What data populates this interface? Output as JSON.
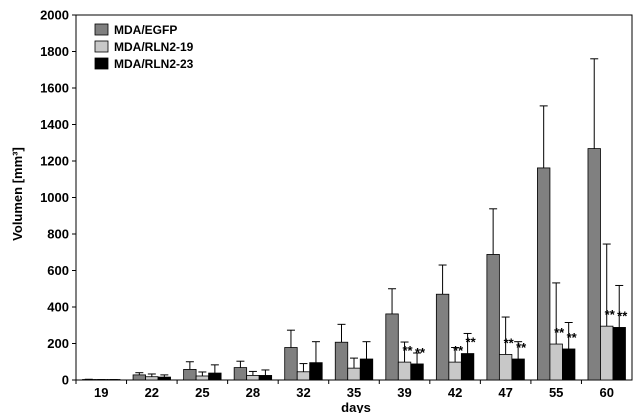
{
  "chart_data": {
    "type": "bar",
    "xlabel": "days",
    "ylabel": "Volumen [mm³]",
    "ylim": [
      0,
      2000
    ],
    "yticks": [
      0,
      200,
      400,
      600,
      800,
      1000,
      1200,
      1400,
      1600,
      1800,
      2000
    ],
    "categories": [
      "19",
      "22",
      "25",
      "28",
      "32",
      "35",
      "39",
      "42",
      "47",
      "55",
      "60"
    ],
    "series": [
      {
        "name": "MDA/EGFP",
        "color": "#808080",
        "values": [
          2,
          28,
          58,
          68,
          178,
          207,
          362,
          470,
          688,
          1162,
          1268
        ],
        "errors": [
          2,
          12,
          42,
          35,
          95,
          98,
          138,
          160,
          250,
          340,
          492
        ],
        "significance": [
          "",
          "",
          "",
          "",
          "",
          "",
          "",
          "",
          "",
          "",
          ""
        ]
      },
      {
        "name": "MDA/RLN2-19",
        "color": "#c8c8c8",
        "values": [
          1,
          18,
          22,
          25,
          45,
          65,
          98,
          98,
          140,
          197,
          295
        ],
        "errors": [
          1,
          15,
          22,
          22,
          45,
          55,
          110,
          80,
          205,
          335,
          450
        ],
        "significance": [
          "",
          "",
          "",
          "",
          "",
          "",
          "**",
          "**",
          "**",
          "**",
          "**"
        ]
      },
      {
        "name": "MDA/RLN2-23",
        "color": "#000000",
        "values": [
          1,
          16,
          38,
          25,
          95,
          115,
          88,
          145,
          115,
          170,
          288
        ],
        "errors": [
          1,
          12,
          45,
          30,
          115,
          95,
          60,
          110,
          95,
          145,
          230
        ],
        "significance": [
          "",
          "",
          "",
          "",
          "",
          "",
          "**",
          "**",
          "**",
          "**",
          "**"
        ]
      }
    ],
    "legend_position": "top-left",
    "grid": false
  }
}
